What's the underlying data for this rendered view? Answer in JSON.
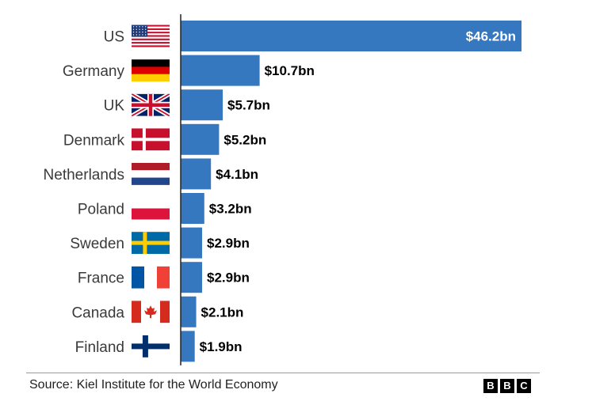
{
  "chart_data": {
    "type": "bar",
    "orientation": "horizontal",
    "categories": [
      "US",
      "Germany",
      "UK",
      "Denmark",
      "Netherlands",
      "Poland",
      "Sweden",
      "France",
      "Canada",
      "Finland"
    ],
    "values": [
      46.2,
      10.7,
      5.7,
      5.2,
      4.1,
      3.2,
      2.9,
      2.9,
      2.1,
      1.9
    ],
    "value_labels": [
      "$46.2bn",
      "$10.7bn",
      "$5.7bn",
      "$5.2bn",
      "$4.1bn",
      "$3.2bn",
      "$2.9bn",
      "$2.9bn",
      "$2.1bn",
      "$1.9bn"
    ],
    "flags": [
      "us-flag-icon",
      "germany-flag-icon",
      "uk-flag-icon",
      "denmark-flag-icon",
      "netherlands-flag-icon",
      "poland-flag-icon",
      "sweden-flag-icon",
      "france-flag-icon",
      "canada-flag-icon",
      "finland-flag-icon"
    ],
    "xlim": [
      0,
      46.2
    ],
    "title": "",
    "xlabel": "",
    "ylabel": "",
    "grid": false,
    "legend": "none",
    "bar_color": "#3578c0",
    "label_color_inside": "#ffffff",
    "label_color_outside": "#000000"
  },
  "footer": {
    "source": "Source: Kiel Institute for the World Economy",
    "logo_letters": [
      "B",
      "B",
      "C"
    ]
  }
}
